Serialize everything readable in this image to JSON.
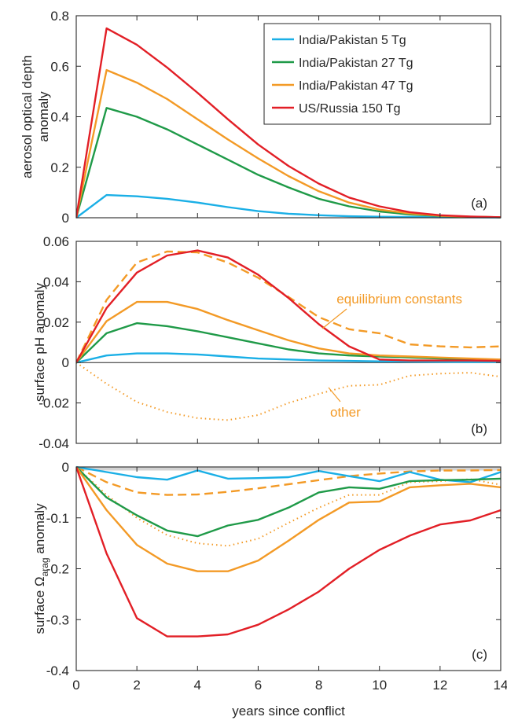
{
  "figure": {
    "xlabel": "years since conflict",
    "x_ticks": [
      0,
      2,
      4,
      6,
      8,
      10,
      12,
      14
    ],
    "xlim": [
      0,
      14
    ]
  },
  "legend": {
    "placement": "top-right",
    "entries": [
      {
        "label": "India/Pakistan 5 Tg",
        "color": "#1aafe6"
      },
      {
        "label": "India/Pakistan 27 Tg",
        "color": "#1f9a48"
      },
      {
        "label": "India/Pakistan 47 Tg",
        "color": "#f39a26"
      },
      {
        "label": "US/Russia 150 Tg",
        "color": "#e21f26"
      }
    ]
  },
  "chart_data": [
    {
      "type": "line",
      "panel": "(a)",
      "ylabel": "aerosol optical depth anomaly",
      "ylabel_lines": [
        "aerosol optical depth",
        "anomaly"
      ],
      "ylim": [
        0,
        0.8
      ],
      "y_ticks": [
        0,
        0.2,
        0.4,
        0.6,
        0.8
      ],
      "y_tick_labels": [
        "0",
        "0.2",
        "0.4",
        "0.6",
        "0.8"
      ],
      "x": [
        0,
        1,
        2,
        3,
        4,
        5,
        6,
        7,
        8,
        9,
        10,
        11,
        12,
        13,
        14
      ],
      "series": [
        {
          "name": "India/Pakistan 5 Tg",
          "color": "#1aafe6",
          "style": "solid",
          "values": [
            0,
            0.09,
            0.085,
            0.075,
            0.06,
            0.042,
            0.026,
            0.016,
            0.01,
            0.006,
            0.004,
            0.003,
            0.002,
            0.002,
            0.001
          ]
        },
        {
          "name": "India/Pakistan 27 Tg",
          "color": "#1f9a48",
          "style": "solid",
          "values": [
            0,
            0.435,
            0.4,
            0.35,
            0.29,
            0.23,
            0.17,
            0.12,
            0.075,
            0.045,
            0.025,
            0.013,
            0.007,
            0.004,
            0.002
          ]
        },
        {
          "name": "India/Pakistan 47 Tg",
          "color": "#f39a26",
          "style": "solid",
          "values": [
            0,
            0.585,
            0.535,
            0.47,
            0.39,
            0.31,
            0.235,
            0.165,
            0.105,
            0.06,
            0.032,
            0.017,
            0.008,
            0.004,
            0.002
          ]
        },
        {
          "name": "US/Russia 150 Tg",
          "color": "#e21f26",
          "style": "solid",
          "values": [
            0,
            0.75,
            0.685,
            0.595,
            0.495,
            0.39,
            0.29,
            0.205,
            0.135,
            0.08,
            0.045,
            0.022,
            0.01,
            0.005,
            0.002
          ]
        }
      ]
    },
    {
      "type": "line",
      "panel": "(b)",
      "ylabel": "surface pH anomaly",
      "ylim": [
        -0.04,
        0.06
      ],
      "y_ticks": [
        -0.04,
        -0.02,
        0,
        0.02,
        0.04,
        0.06
      ],
      "y_tick_labels": [
        "-0.04",
        "-0.02",
        "0",
        "0.02",
        "0.04",
        "0.06"
      ],
      "x": [
        0,
        1,
        2,
        3,
        4,
        5,
        6,
        7,
        8,
        9,
        10,
        11,
        12,
        13,
        14
      ],
      "annotations": [
        {
          "text": "equilibrium constants",
          "color": "#f39a26"
        },
        {
          "text": "other",
          "color": "#f39a26"
        }
      ],
      "series": [
        {
          "name": "India/Pakistan 5 Tg",
          "color": "#1aafe6",
          "style": "solid",
          "values": [
            0,
            0.0035,
            0.0045,
            0.0045,
            0.004,
            0.003,
            0.002,
            0.0015,
            0.001,
            0.0008,
            0.0006,
            0.0005,
            0.0004,
            0.0003,
            0.0003
          ]
        },
        {
          "name": "India/Pakistan 27 Tg",
          "color": "#1f9a48",
          "style": "solid",
          "values": [
            0,
            0.0145,
            0.0195,
            0.018,
            0.0155,
            0.0125,
            0.0095,
            0.0065,
            0.0045,
            0.0035,
            0.003,
            0.0025,
            0.002,
            0.0015,
            0.0012
          ]
        },
        {
          "name": "India/Pakistan 47 Tg",
          "color": "#f39a26",
          "style": "solid",
          "values": [
            0,
            0.0205,
            0.03,
            0.03,
            0.0265,
            0.021,
            0.016,
            0.011,
            0.007,
            0.0045,
            0.0035,
            0.003,
            0.0025,
            0.002,
            0.0015
          ]
        },
        {
          "name": "US/Russia 150 Tg",
          "color": "#e21f26",
          "style": "solid",
          "values": [
            0,
            0.027,
            0.0445,
            0.053,
            0.0555,
            0.052,
            0.0435,
            0.032,
            0.019,
            0.008,
            0.0015,
            0.001,
            0.001,
            0.001,
            0.0008
          ]
        },
        {
          "name": "equilibrium constants",
          "color": "#f39a26",
          "style": "dashed",
          "values": [
            0,
            0.031,
            0.0495,
            0.055,
            0.0545,
            0.0495,
            0.042,
            0.0325,
            0.0225,
            0.0165,
            0.0145,
            0.009,
            0.008,
            0.0075,
            0.008
          ]
        },
        {
          "name": "other",
          "color": "#f39a26",
          "style": "dotted",
          "values": [
            0,
            -0.0105,
            -0.0195,
            -0.0245,
            -0.0275,
            -0.0285,
            -0.026,
            -0.02,
            -0.0155,
            -0.0115,
            -0.011,
            -0.0065,
            -0.0055,
            -0.005,
            -0.007
          ]
        }
      ]
    },
    {
      "type": "line",
      "panel": "(c)",
      "ylabel": "surface Ωarag anomaly",
      "ylabel_parts": {
        "before": "surface Ω",
        "sub": "arag",
        "after": " anomaly"
      },
      "ylim": [
        -0.4,
        0
      ],
      "y_ticks": [
        -0.4,
        -0.3,
        -0.2,
        -0.1,
        0
      ],
      "y_tick_labels": [
        "-0.4",
        "-0.3",
        "-0.2",
        "-0.1",
        "0"
      ],
      "shaded_band": {
        "from": -0.007,
        "to": 0,
        "color": "#d3d3d3"
      },
      "x": [
        0,
        1,
        2,
        3,
        4,
        5,
        6,
        7,
        8,
        9,
        10,
        11,
        12,
        13,
        14
      ],
      "series": [
        {
          "name": "India/Pakistan 5 Tg",
          "color": "#1aafe6",
          "style": "solid",
          "values": [
            0,
            -0.01,
            -0.02,
            -0.025,
            -0.007,
            -0.023,
            -0.022,
            -0.02,
            -0.008,
            -0.018,
            -0.028,
            -0.01,
            -0.025,
            -0.03,
            -0.01
          ]
        },
        {
          "name": "India/Pakistan 27 Tg",
          "color": "#1f9a48",
          "style": "solid",
          "values": [
            0,
            -0.06,
            -0.095,
            -0.125,
            -0.136,
            -0.115,
            -0.104,
            -0.08,
            -0.05,
            -0.04,
            -0.043,
            -0.028,
            -0.026,
            -0.025,
            -0.023
          ]
        },
        {
          "name": "India/Pakistan 47 Tg",
          "color": "#f39a26",
          "style": "solid",
          "values": [
            0,
            -0.085,
            -0.153,
            -0.19,
            -0.205,
            -0.205,
            -0.184,
            -0.145,
            -0.104,
            -0.07,
            -0.068,
            -0.04,
            -0.036,
            -0.033,
            -0.04
          ]
        },
        {
          "name": "US/Russia 150 Tg",
          "color": "#e21f26",
          "style": "solid",
          "values": [
            0,
            -0.17,
            -0.297,
            -0.333,
            -0.333,
            -0.329,
            -0.31,
            -0.28,
            -0.245,
            -0.2,
            -0.163,
            -0.135,
            -0.113,
            -0.105,
            -0.085
          ]
        },
        {
          "name": "equilibrium constants",
          "color": "#f39a26",
          "style": "dashed",
          "values": [
            0,
            -0.03,
            -0.05,
            -0.055,
            -0.054,
            -0.049,
            -0.042,
            -0.034,
            -0.026,
            -0.018,
            -0.013,
            -0.009,
            -0.007,
            -0.007,
            -0.006
          ]
        },
        {
          "name": "other",
          "color": "#f39a26",
          "style": "dotted",
          "values": [
            0,
            -0.055,
            -0.1,
            -0.134,
            -0.15,
            -0.155,
            -0.141,
            -0.11,
            -0.08,
            -0.055,
            -0.055,
            -0.03,
            -0.028,
            -0.024,
            -0.035
          ]
        }
      ]
    }
  ]
}
